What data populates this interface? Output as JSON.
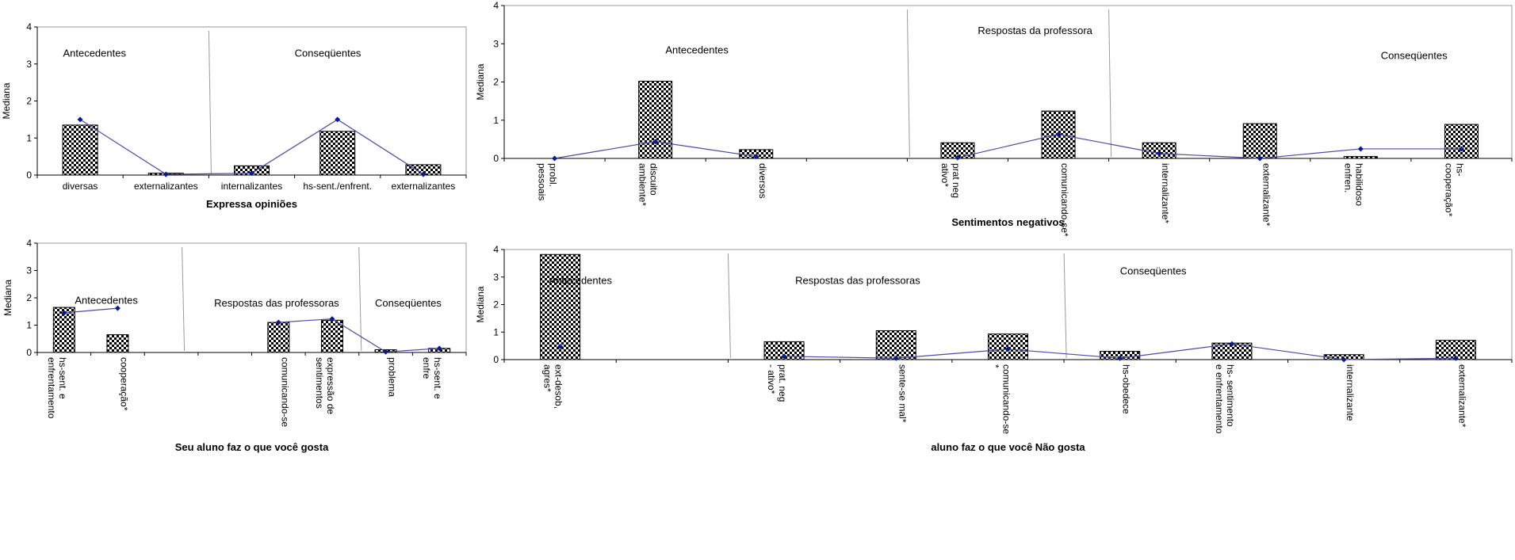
{
  "chart_data": [
    {
      "id": "expressa",
      "type": "bar+line",
      "xlabel": "Expressa  opiniões",
      "ylabel": "Mediana",
      "ylim": [
        0,
        4
      ],
      "yticks": [
        "0",
        "1",
        "2",
        "3",
        "4"
      ],
      "rotated_labels": false,
      "categories": [
        "diversas",
        "externalizantes",
        "internalizantes",
        "hs-sent./enfrent.",
        "externalizantes"
      ],
      "bars": [
        1.35,
        0.05,
        0.25,
        1.18,
        0.28
      ],
      "line": [
        1.5,
        0.02,
        0.05,
        1.5,
        0.02
      ],
      "annotations": [
        {
          "text": "Antecedentes",
          "at_category": 0.3,
          "y": 3.2
        },
        {
          "text": "Conseqüentes",
          "at_category": 3.0,
          "y": 3.2
        }
      ],
      "dividers_after_category": [
        1.5
      ]
    },
    {
      "id": "sentimentos",
      "type": "bar+line",
      "xlabel": "Sentimentos negativos",
      "ylabel": "Mediana",
      "ylim": [
        0,
        4
      ],
      "yticks": [
        "0",
        "1",
        "2",
        "3",
        "4"
      ],
      "rotated_labels": true,
      "categories": [
        "probl. pessoais",
        "discuito ambiente*",
        "diversos",
        "",
        "prat neg ativo*",
        "comunicando-se*",
        "internalizante*",
        "externalizante*",
        "habilidoso enfren.",
        "hs- cooperação*"
      ],
      "bars": [
        0,
        2.02,
        0.23,
        null,
        0.41,
        1.24,
        0.41,
        0.91,
        0.05,
        0.89
      ],
      "line": [
        0,
        0.44,
        0.05,
        null,
        0.02,
        0.63,
        0.13,
        0.0,
        0.25,
        0.25
      ],
      "annotations": [
        {
          "text": "Antecedentes",
          "at_category": 1.6,
          "y": 2.75
        },
        {
          "text": "Respostas da professora",
          "at_category": 4.7,
          "y": 3.25
        },
        {
          "text": "Conseqüentes",
          "at_category": 8.7,
          "y": 2.6
        }
      ],
      "dividers_after_category": [
        3.5,
        5.5
      ]
    },
    {
      "id": "gosta",
      "type": "bar+line",
      "xlabel": "Seu aluno faz o que você gosta",
      "ylabel": "Mediana",
      "ylim": [
        0,
        4
      ],
      "yticks": [
        "0",
        "1",
        "2",
        "3",
        "4"
      ],
      "rotated_labels": true,
      "categories": [
        "hs-sent. e enfrentamento",
        "cooperação*",
        "",
        "",
        "comunicando-se",
        "expressão de sentimentos",
        "problema",
        "hs-sent. e enfre"
      ],
      "bars": [
        1.65,
        0.65,
        null,
        null,
        1.1,
        1.18,
        0.1,
        0.15
      ],
      "line": [
        1.45,
        1.62,
        null,
        null,
        1.1,
        1.23,
        0.02,
        0.15
      ],
      "annotations": [
        {
          "text": "Antecedentes",
          "at_category": 0.7,
          "y": 1.78
        },
        {
          "text": "Respostas das professoras",
          "at_category": 3.3,
          "y": 1.68
        },
        {
          "text": "Conseqüentes",
          "at_category": 6.3,
          "y": 1.68
        }
      ],
      "dividers_after_category": [
        2.2,
        5.5
      ]
    },
    {
      "id": "naogosta",
      "type": "bar+line",
      "xlabel": "aluno faz o que você Não gosta",
      "ylabel": "Mediana",
      "ylim": [
        0,
        4
      ],
      "yticks": [
        "0",
        "1",
        "2",
        "3",
        "4"
      ],
      "rotated_labels": true,
      "categories": [
        "ext-desob, agres*",
        "",
        "prat. neg - ativo*",
        "sente-se mal*",
        "comunicando-se *",
        "hs-obedece",
        "hs- sentimento e enfrentamento",
        "internalizante",
        "externalizante*"
      ],
      "bars": [
        3.82,
        null,
        0.65,
        1.05,
        0.93,
        0.3,
        0.6,
        0.18,
        0.7
      ],
      "line": [
        0.48,
        null,
        0.12,
        0.05,
        0.38,
        0.05,
        0.57,
        0.0,
        0.05
      ],
      "annotations": [
        {
          "text": "Antecedentes",
          "at_category": 0.4,
          "y": 2.75
        },
        {
          "text": "Respostas das professoras",
          "at_category": 2.6,
          "y": 2.75
        },
        {
          "text": "Conseqüentes",
          "at_category": 5.5,
          "y": 3.1
        }
      ],
      "dividers_after_category": [
        1.5,
        4.5
      ]
    }
  ]
}
